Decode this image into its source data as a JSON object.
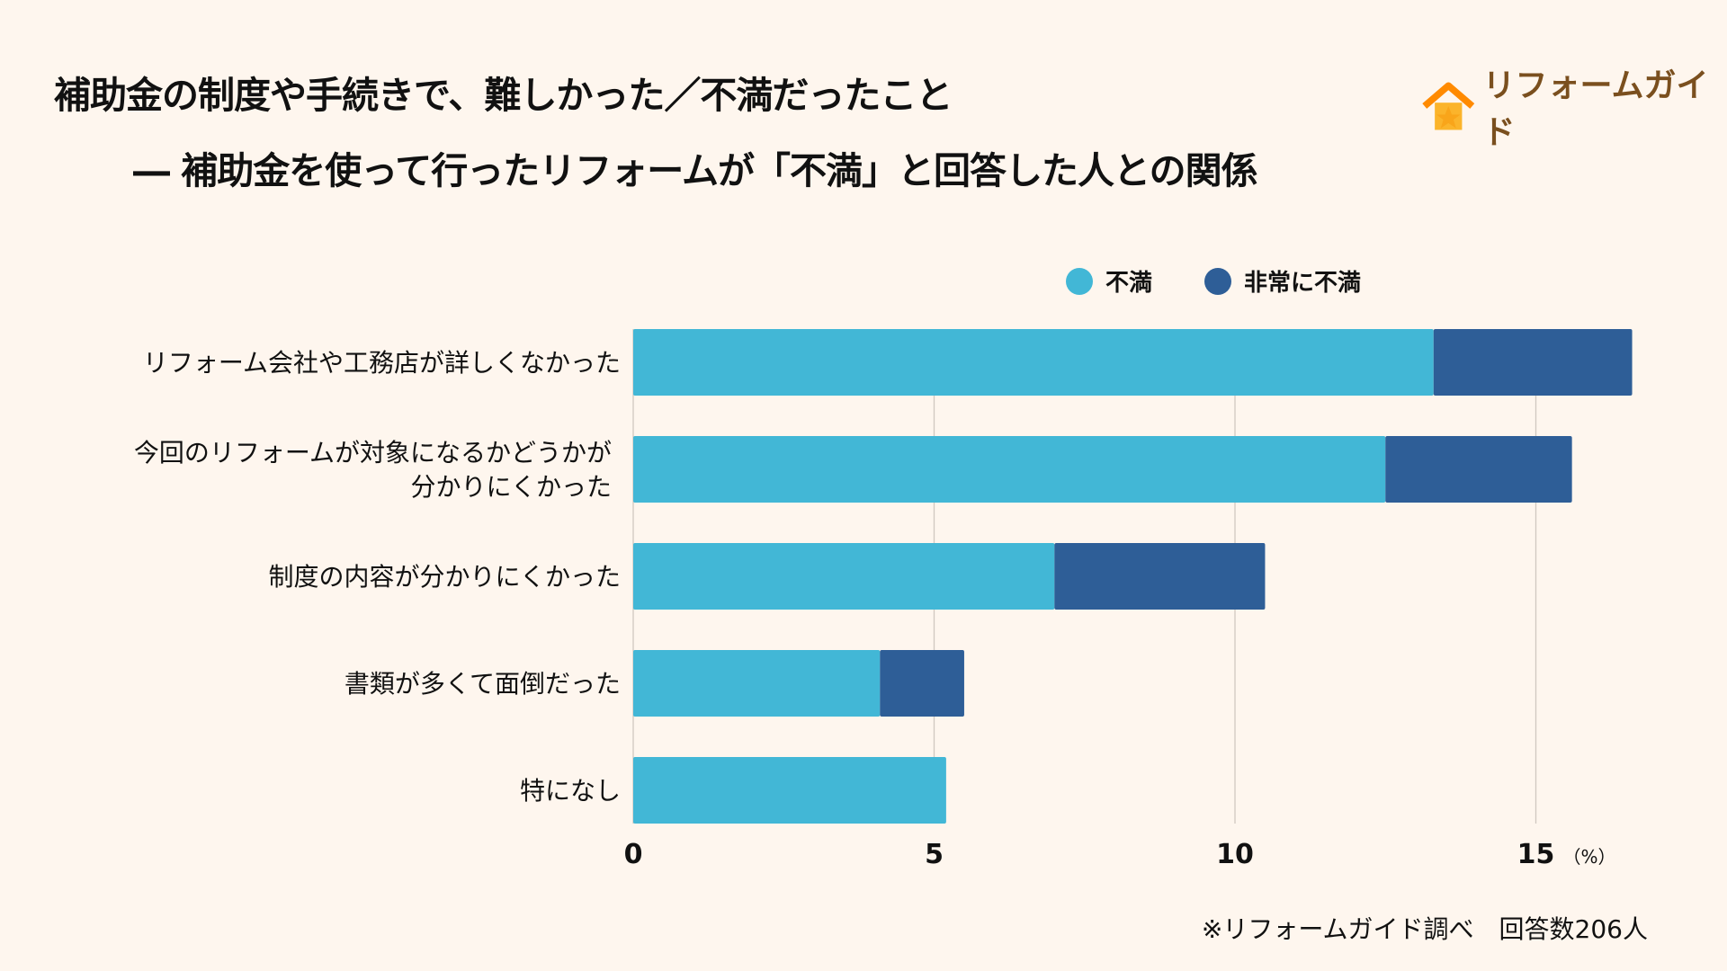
{
  "title_line1": "補助金の制度や手続きで、難しかった／不満だったこと",
  "title_line2": "―  補助金を使って行ったリフォームが「不満」と回答した人との関係",
  "logo_text": "リフォームガイド",
  "footnote": "※リフォームガイド調べ　回答数206人",
  "chart_data": {
    "type": "bar",
    "orientation": "horizontal",
    "stacked": true,
    "categories": [
      "リフォーム会社や工務店が詳しくなかった",
      "今回のリフォームが対象になるかどうかが\n分かりにくかった",
      "制度の内容が分かりにくかった",
      "書類が多くて面倒だった",
      "特になし"
    ],
    "series": [
      {
        "name": "不満",
        "color": "#42b7d6",
        "values": [
          13.3,
          12.5,
          7.0,
          4.1,
          5.2
        ]
      },
      {
        "name": "非常に不満",
        "color": "#2e5e97",
        "values": [
          3.3,
          3.1,
          3.5,
          1.4,
          0
        ]
      }
    ],
    "xlim": [
      0,
      17
    ],
    "xticks": [
      0,
      5,
      10,
      15
    ],
    "xunit": "（%）",
    "grid": true,
    "legend": "top-right"
  }
}
